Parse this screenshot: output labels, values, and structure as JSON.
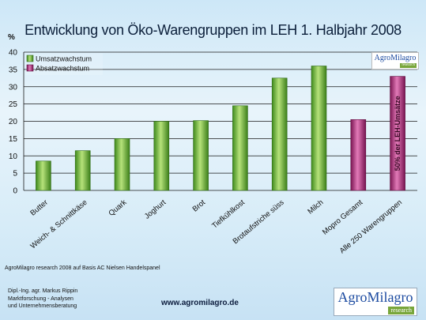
{
  "title": "Entwicklung von Öko-Warengruppen im LEH 1. Halbjahr 2008",
  "y_unit": "%",
  "source_note": "AgroMilagro research 2008 auf Basis AC Nielsen Handelspanel",
  "footer": {
    "line1": "Dipl.-Ing. agr. Markus Rippin",
    "line2": "Marktforschung - Analysen",
    "line3": "und Unternehmensberatung",
    "url": "www.agromilagro.de"
  },
  "logo": {
    "brand": "AgroMilagro",
    "sub": "research"
  },
  "colors": {
    "umsatz": "#7ac143",
    "absatz": "#b0307a",
    "background": "#d7ecf8"
  },
  "chart_data": {
    "type": "bar",
    "title": "Entwicklung von Öko-Warengruppen im LEH 1. Halbjahr 2008",
    "ylabel": "%",
    "ylim": [
      0,
      40
    ],
    "yticks": [
      0,
      5,
      10,
      15,
      20,
      25,
      30,
      35,
      40
    ],
    "grid": true,
    "legend_position": "top-left",
    "categories": [
      "Butter",
      "Weich- & Schnittkäse",
      "Quark",
      "Joghurt",
      "Brot",
      "Tiefkühlkost",
      "Brotaufstriche süss",
      "Milch",
      "Mopro Gesamt",
      "Alle 250 Warengruppen"
    ],
    "series": [
      {
        "name": "Umsatzwachstum",
        "values": [
          8.5,
          11.5,
          15,
          20,
          20.2,
          24.5,
          32.5,
          36,
          null,
          null
        ]
      },
      {
        "name": "Absatzwachstum",
        "values": [
          null,
          null,
          null,
          null,
          null,
          null,
          null,
          null,
          20.5,
          33
        ]
      }
    ],
    "annotations": [
      {
        "text": "50% der LEH-Umsätze",
        "category": "Alle 250 Warengruppen",
        "orientation": "vertical"
      }
    ]
  }
}
